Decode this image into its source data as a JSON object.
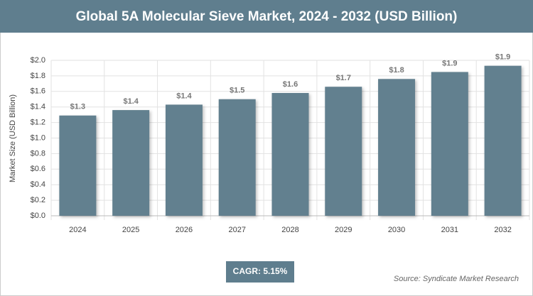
{
  "chart_data": {
    "type": "bar",
    "title": "Global 5A Molecular Sieve Market, 2024 - 2032 (USD Billion)",
    "y_axis_label": "Market Size (USD Billion)",
    "categories": [
      "2024",
      "2025",
      "2026",
      "2027",
      "2028",
      "2029",
      "2030",
      "2031",
      "2032"
    ],
    "values": [
      1.29,
      1.36,
      1.43,
      1.5,
      1.58,
      1.66,
      1.76,
      1.85,
      1.93
    ],
    "value_labels": [
      "$1.3",
      "$1.4",
      "$1.4",
      "$1.5",
      "$1.6",
      "$1.7",
      "$1.8",
      "$1.9",
      "$1.9"
    ],
    "color": "#62808f",
    "ylim": [
      0,
      2.0
    ],
    "yticks": [
      {
        "value": 0,
        "label": "$0.0"
      },
      {
        "value": 0.2,
        "label": "$0.2"
      },
      {
        "value": 0.4,
        "label": "$0.4"
      },
      {
        "value": 0.6,
        "label": "$0.6"
      },
      {
        "value": 0.8,
        "label": "$0.8"
      },
      {
        "value": 1.0,
        "label": "$1.0"
      },
      {
        "value": 1.2,
        "label": "$1.2"
      },
      {
        "value": 1.4,
        "label": "$1.4"
      },
      {
        "value": 1.6,
        "label": "$1.6"
      },
      {
        "value": 1.8,
        "label": "$1.8"
      },
      {
        "value": 2.0,
        "label": "$2.0"
      }
    ],
    "grid": true,
    "annotation": "CAGR: 5.15%",
    "source": "Source: Syndicate Market Research"
  }
}
